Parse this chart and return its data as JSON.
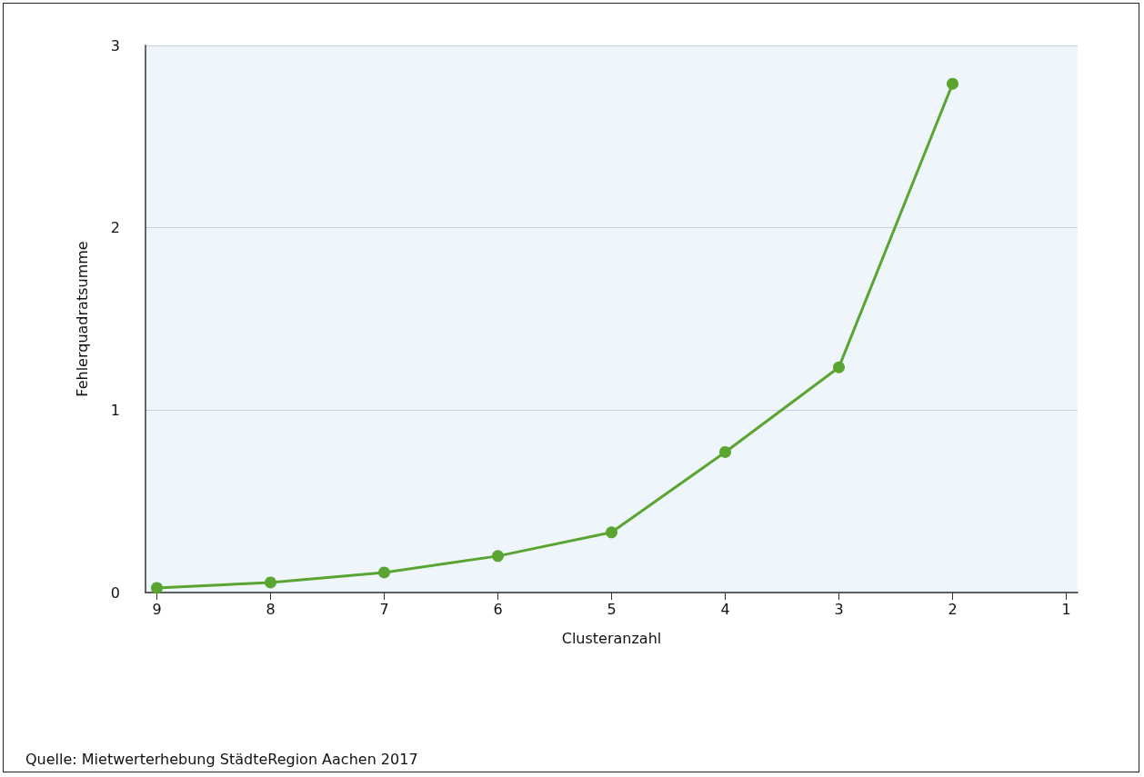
{
  "chart_data": {
    "type": "line",
    "xlabel": "Clusteranzahl",
    "ylabel": "Fehlerquadratsumme",
    "x": [
      9,
      8,
      7,
      6,
      5,
      4,
      3,
      2
    ],
    "series": [
      {
        "color": "#5aa532",
        "values": [
          0.025,
          0.055,
          0.11,
          0.2,
          0.33,
          0.77,
          1.235,
          2.79
        ]
      }
    ],
    "xlim": [
      9.1,
      0.9
    ],
    "xticks": [
      9,
      8,
      7,
      6,
      5,
      4,
      3,
      2,
      1
    ],
    "ylim": [
      0,
      3
    ],
    "yticks": [
      0,
      1,
      2,
      3
    ],
    "grid": "y",
    "marker": "circle",
    "line_style": "solid",
    "annotations": [
      "Quelle: Mietwerterhebung StädteRegion Aachen 2017"
    ]
  }
}
